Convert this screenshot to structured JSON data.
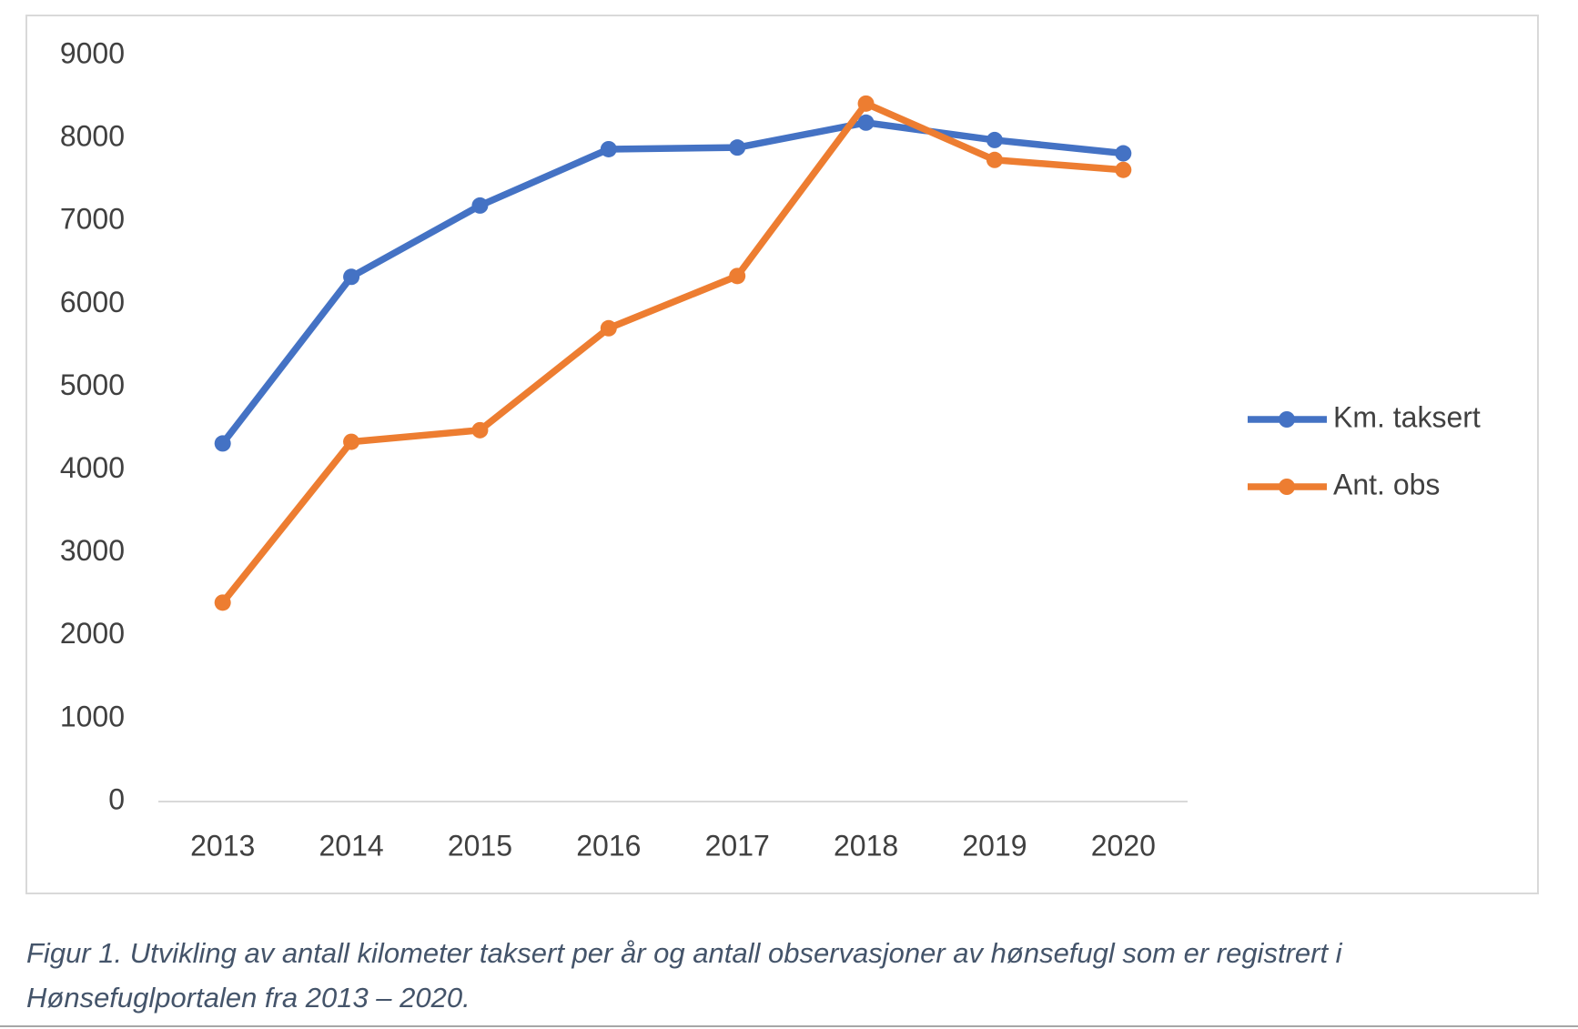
{
  "chart_data": {
    "type": "line",
    "categories": [
      "2013",
      "2014",
      "2015",
      "2016",
      "2017",
      "2018",
      "2019",
      "2020"
    ],
    "series": [
      {
        "name": "Km. taksert",
        "color": "#4472c4",
        "values": [
          4320,
          6330,
          7190,
          7870,
          7890,
          8190,
          7980,
          7820
        ]
      },
      {
        "name": "Ant. obs",
        "color": "#ed7d31",
        "values": [
          2400,
          4340,
          4480,
          5710,
          6340,
          8420,
          7740,
          7620
        ]
      }
    ],
    "ylim": [
      0,
      9000
    ],
    "yticks": [
      0,
      1000,
      2000,
      3000,
      4000,
      5000,
      6000,
      7000,
      8000,
      9000
    ],
    "grid": false,
    "legend": "right"
  },
  "caption": [
    "Figur 1. Utvikling av antall kilometer taksert per år og antall observasjoner av hønsefugl som er registrert i",
    "Hønsefuglportalen fra 2013 – 2020."
  ]
}
